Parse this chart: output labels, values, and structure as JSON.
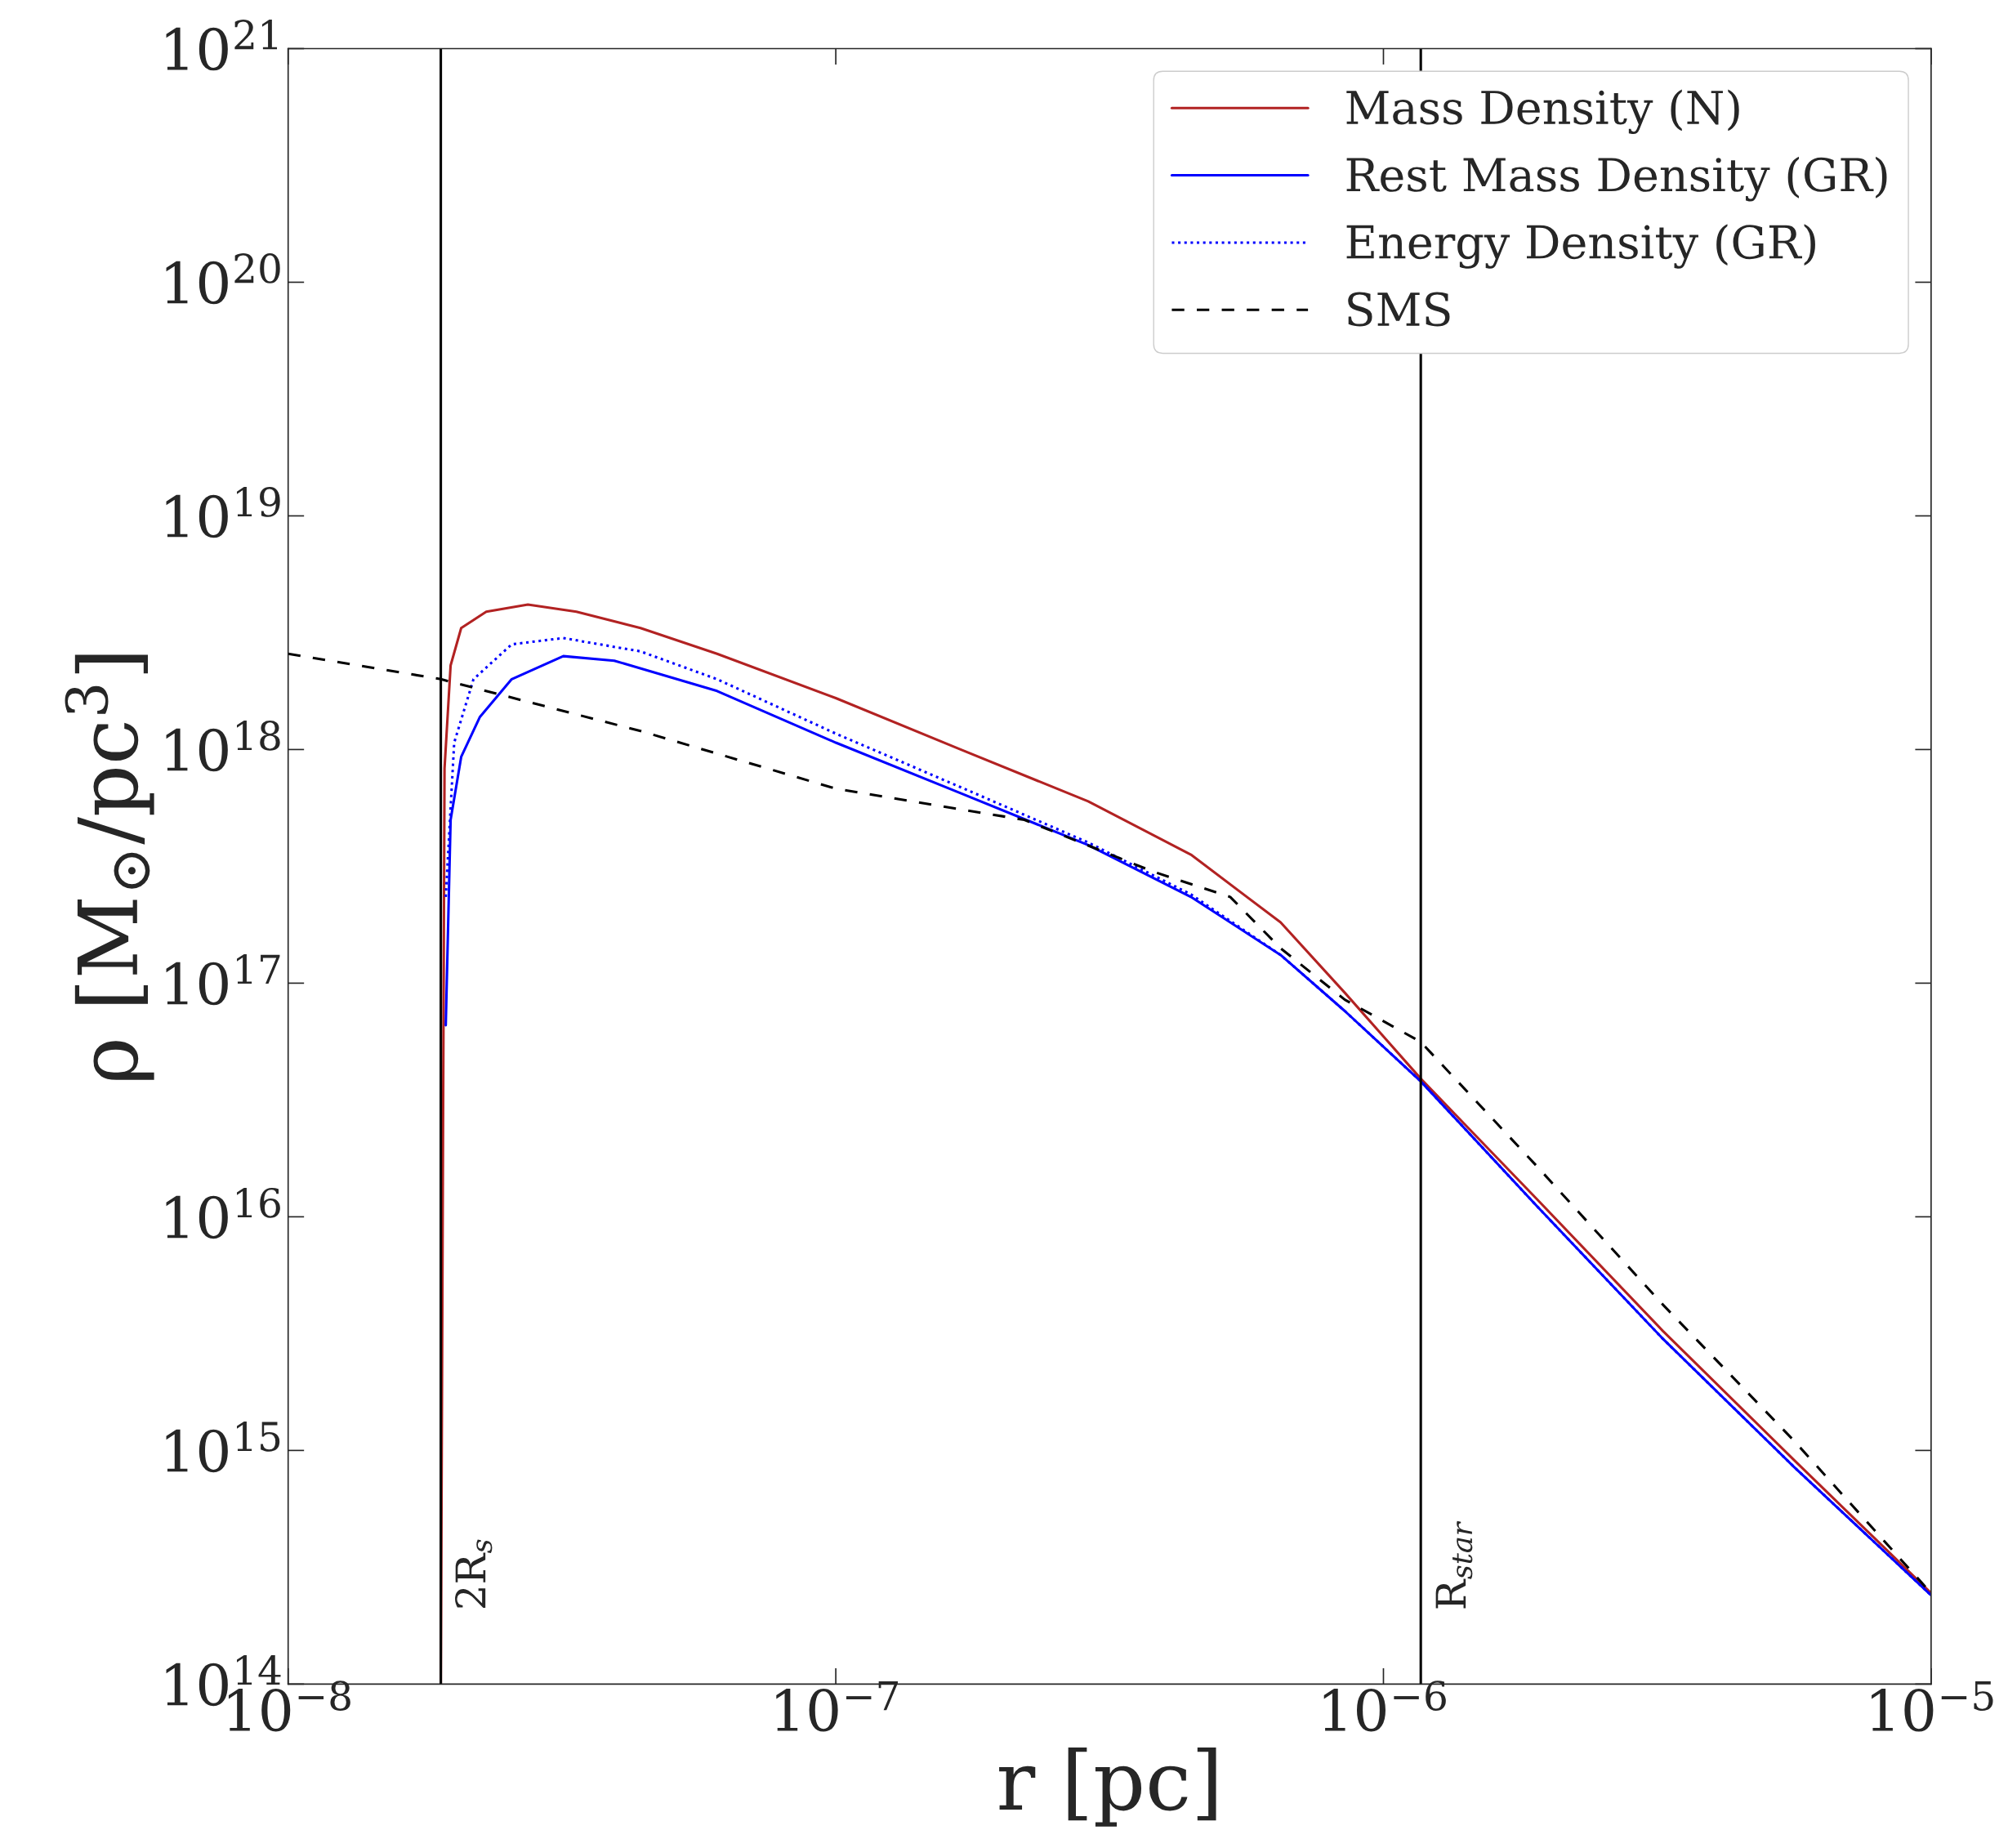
{
  "chart_data": {
    "type": "line",
    "xlabel": "r [pc]",
    "ylabel": "ρ [M$_{⊙}$/pc$^{3}$]",
    "log": "xy",
    "grid": false,
    "legend": "top right",
    "xlim": [
      1e-08,
      1e-05
    ],
    "ylim": [
      100000000000000.0,
      1e+21
    ],
    "xticks": [
      {
        "value": 1e-08,
        "label": "10$^{−8}$"
      },
      {
        "value": 1e-07,
        "label": "10$^{−7}$"
      },
      {
        "value": 1e-06,
        "label": "10$^{−6}$"
      },
      {
        "value": 1e-05,
        "label": "10$^{−5}$"
      }
    ],
    "yticks": [
      {
        "value": 100000000000000.0,
        "label": "10$^{14}$"
      },
      {
        "value": 1000000000000000.0,
        "label": "10$^{15}$"
      },
      {
        "value": 1e+16,
        "label": "10$^{16}$"
      },
      {
        "value": 1e+17,
        "label": "10$^{17}$"
      },
      {
        "value": 1e+18,
        "label": "10$^{18}$"
      },
      {
        "value": 1e+19,
        "label": "10$^{19}$"
      },
      {
        "value": 1e+20,
        "label": "10$^{20}$"
      },
      {
        "value": 1e+21,
        "label": "10$^{21}$"
      }
    ],
    "series": [
      {
        "name": "Mass Density (N)",
        "color": "#b22222",
        "line_style": "solid",
        "x": [
          1.9e-08,
          1.93e-08,
          1.98e-08,
          2.07e-08,
          2.3e-08,
          2.74e-08,
          3.36e-08,
          4.4e-08,
          6.07e-08,
          1e-07,
          1.69e-07,
          2.89e-07,
          4.45e-07,
          6.49e-07,
          8.5e-07,
          1.17e-06,
          1.9e-06,
          3.24e-06,
          5.62e-06,
          1e-05
        ],
        "values": [
          100000000000000.0,
          8.3e+17,
          2.29e+18,
          3.31e+18,
          3.89e+18,
          4.17e+18,
          3.89e+18,
          3.31e+18,
          2.57e+18,
          1.66e+18,
          1e+18,
          6e+17,
          3.55e+17,
          1.82e+17,
          9.1e+16,
          3.9e+16,
          1.2e+16,
          3240000000000000.0,
          910000000000000.0,
          245000000000000.0
        ]
      },
      {
        "name": "Rest Mass Density (GR)",
        "color": "#0000ff",
        "line_style": "solid",
        "x": [
          1.94e-08,
          1.98e-08,
          2.07e-08,
          2.24e-08,
          2.56e-08,
          3.18e-08,
          3.94e-08,
          6.07e-08,
          1e-07,
          1.69e-07,
          2.89e-07,
          4.45e-07,
          6.49e-07,
          8.5e-07,
          1.17e-06,
          1.9e-06,
          3.24e-06,
          5.62e-06,
          1e-05
        ],
        "values": [
          6.6e+16,
          5e+17,
          9.3e+17,
          1.38e+18,
          2e+18,
          2.51e+18,
          2.4e+18,
          1.78e+18,
          1.07e+18,
          6.5e+17,
          3.9e+17,
          2.34e+17,
          1.32e+17,
          7.6e+16,
          3.8e+16,
          1.12e+16,
          3000000000000000.0,
          850000000000000.0,
          240000000000000.0
        ]
      },
      {
        "name": "Energy Density (GR)",
        "color": "#0000ff",
        "line_style": "dotted",
        "x": [
          1.94e-08,
          2.01e-08,
          2.18e-08,
          2.56e-08,
          3.18e-08,
          4.4e-08,
          6.07e-08,
          1e-07,
          1.69e-07,
          2.89e-07,
          4.45e-07,
          6.49e-07,
          8.5e-07,
          1.17e-06,
          1.9e-06,
          3.24e-06,
          5.62e-06,
          1e-05
        ],
        "values": [
          2.34e+17,
          1.07e+18,
          2e+18,
          2.82e+18,
          3e+18,
          2.63e+18,
          2e+18,
          1.17e+18,
          6.9e+17,
          4e+17,
          2.4e+17,
          1.32e+17,
          7.6e+16,
          3.8e+16,
          1.12e+16,
          3000000000000000.0,
          850000000000000.0,
          240000000000000.0
        ]
      },
      {
        "name": "SMS",
        "color": "#000000",
        "line_style": "dashed",
        "x": [
          1e-08,
          1.9e-08,
          4.4e-08,
          1e-07,
          2.21e-07,
          3.8e-07,
          5.25e-07,
          6.49e-07,
          8.5e-07,
          1.17e-06,
          1.9e-06,
          3.24e-06,
          5.62e-06,
          1e-05
        ],
        "values": [
          2.57e+18,
          2e+18,
          1.2e+18,
          6.8e+17,
          5e+17,
          3e+17,
          2.34e+17,
          1.41e+17,
          8.5e+16,
          5.6e+16,
          1.66e+16,
          4200000000000000.0,
          1100000000000000.0,
          245000000000000.0
        ]
      }
    ],
    "ref_lines": [
      {
        "axis": "x",
        "value": 1.9e-08,
        "label": "2R$_{s}$",
        "color": "#000000"
      },
      {
        "axis": "x",
        "value": 1.17e-06,
        "label": "R$_{star}$",
        "color": "#000000"
      }
    ]
  }
}
